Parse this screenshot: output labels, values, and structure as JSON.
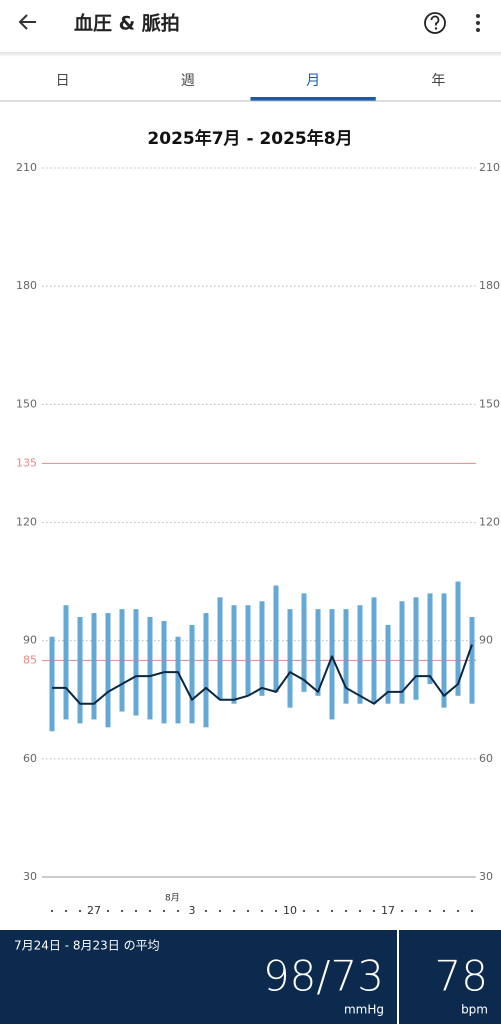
{
  "header": {
    "title": "血圧 & 脈拍"
  },
  "tabs": {
    "items": [
      "日",
      "週",
      "月",
      "年"
    ],
    "selected": 2
  },
  "chart_data": {
    "type": "bar",
    "title": "2025年7月 - 2025年8月",
    "categories": [
      null,
      null,
      null,
      "27",
      null,
      null,
      null,
      null,
      null,
      null,
      "3",
      null,
      null,
      null,
      null,
      null,
      null,
      "10",
      null,
      null,
      null,
      null,
      null,
      null,
      "17",
      null,
      null,
      null,
      null,
      null,
      null
    ],
    "month_label": {
      "index": 10,
      "text": "8月"
    },
    "systolic": {
      "color": "#64a8d6",
      "values": [
        91,
        99,
        96,
        97,
        97,
        98,
        98,
        96,
        95,
        91,
        94,
        97,
        101,
        99,
        99,
        100,
        104,
        98,
        102,
        98,
        98,
        98,
        99,
        101,
        94,
        100,
        101,
        102,
        102,
        105,
        96
      ]
    },
    "diastolic": {
      "values": [
        67,
        70,
        69,
        70,
        68,
        72,
        71,
        70,
        69,
        69,
        69,
        68,
        75,
        74,
        76,
        76,
        77,
        73,
        77,
        76,
        70,
        74,
        74,
        74,
        74,
        74,
        75,
        79,
        73,
        76,
        74
      ]
    },
    "pulse": {
      "color": "#0c2740",
      "values": [
        78,
        78,
        74,
        74,
        77,
        79,
        81,
        81,
        82,
        82,
        75,
        78,
        75,
        75,
        76,
        78,
        77,
        82,
        80,
        77,
        86,
        78,
        76,
        74,
        77,
        77,
        81,
        81,
        76,
        79,
        89
      ]
    },
    "ylim": [
      30,
      210
    ],
    "yticks": [
      30,
      60,
      90,
      120,
      150,
      180,
      210
    ],
    "grid": true,
    "reference_lines": [
      135,
      85
    ],
    "reference_color": "#e38a8a"
  },
  "summary": {
    "period": "7月24日 - 8月23日 の平均",
    "pressure": "98/73",
    "pressure_unit": "mmHg",
    "pulse": "78",
    "pulse_unit": "bpm"
  }
}
